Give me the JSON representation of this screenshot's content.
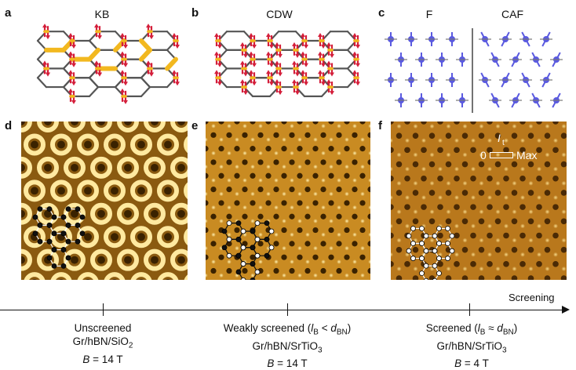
{
  "panels": {
    "a": {
      "letter": "a",
      "title": "KB"
    },
    "b": {
      "letter": "b",
      "title": "CDW"
    },
    "c": {
      "letter": "c",
      "title_left": "F",
      "title_right": "CAF"
    },
    "d": {
      "letter": "d"
    },
    "e": {
      "letter": "e"
    },
    "f": {
      "letter": "f"
    }
  },
  "colorbar": {
    "min_label": "0",
    "max_label": "Max",
    "symbol": "I",
    "subscript": "t"
  },
  "axis": {
    "label": "Screening"
  },
  "captions": [
    {
      "line1": "Unscreened",
      "line2_main": "Gr/hBN/SiO",
      "line2_sub": "2",
      "line3_var": "B",
      "line3_rest": " = 14 T"
    },
    {
      "line1_pre": "Weakly screened (",
      "l_var": "l",
      "l_sub": "B",
      "relation": " < ",
      "d_var": "d",
      "d_sub": "BN",
      "line1_post": ")",
      "line2_main": "Gr/hBN/SrTiO",
      "line2_sub": "3",
      "line3_var": "B",
      "line3_rest": " = 14 T"
    },
    {
      "line1_pre": "Screened (",
      "l_var": "l",
      "l_sub": "B",
      "relation": " ≈ ",
      "d_var": "d",
      "d_sub": "BN",
      "line1_post": ")",
      "line2_main": "Gr/hBN/SrTiO",
      "line2_sub": "3",
      "line3_var": "B",
      "line3_rest": " = 4 T"
    }
  ]
}
